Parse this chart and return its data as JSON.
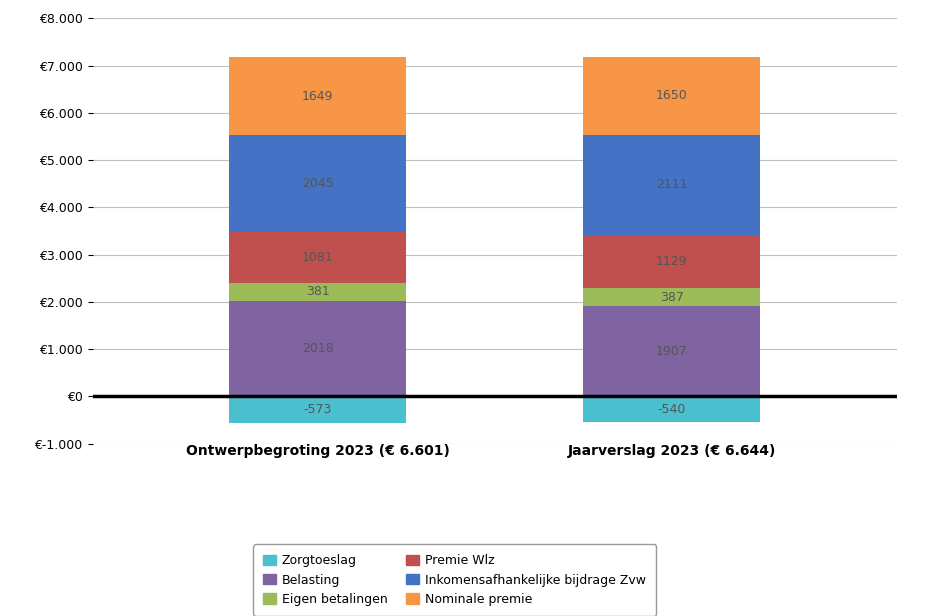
{
  "categories": [
    "Ontwerpbegroting 2023 (€ 6.601)",
    "Jaarverslag 2023 (€ 6.644)"
  ],
  "series": [
    {
      "name": "Zorgtoeslag",
      "values": [
        -573,
        -540
      ],
      "color": "#4BBFCE"
    },
    {
      "name": "Belasting",
      "values": [
        2018,
        1907
      ],
      "color": "#8064A2"
    },
    {
      "name": "Eigen betalingen",
      "values": [
        381,
        387
      ],
      "color": "#9BBB59"
    },
    {
      "name": "Premie Wlz",
      "values": [
        1081,
        1129
      ],
      "color": "#C0504D"
    },
    {
      "name": "Inkomensafhankelijke bijdrage Zvw",
      "values": [
        2045,
        2111
      ],
      "color": "#4472C4"
    },
    {
      "name": "Nominale premie",
      "values": [
        1649,
        1650
      ],
      "color": "#F79646"
    }
  ],
  "legend_order": [
    [
      "Zorgtoeslag",
      "Belasting"
    ],
    [
      "Eigen betalingen",
      "Premie Wlz"
    ],
    [
      "Inkomensafhankelijke bijdrage Zvw",
      "Nominale premie"
    ]
  ],
  "ylim": [
    -1000,
    8000
  ],
  "yticks": [
    -1000,
    0,
    1000,
    2000,
    3000,
    4000,
    5000,
    6000,
    7000,
    8000
  ],
  "ytick_labels": [
    "€-1.000",
    "€0",
    "€1.000",
    "€2.000",
    "€3.000",
    "€4.000",
    "€5.000",
    "€6.000",
    "€7.000",
    "€8.000"
  ],
  "bar_width": 0.22,
  "x_positions": [
    0.28,
    0.72
  ],
  "xlim": [
    0.0,
    1.0
  ],
  "background_color": "#FFFFFF",
  "grid_color": "#C0C0C0",
  "label_fontsize": 9,
  "tick_fontsize": 9,
  "xtick_fontsize": 10,
  "legend_fontsize": 9
}
